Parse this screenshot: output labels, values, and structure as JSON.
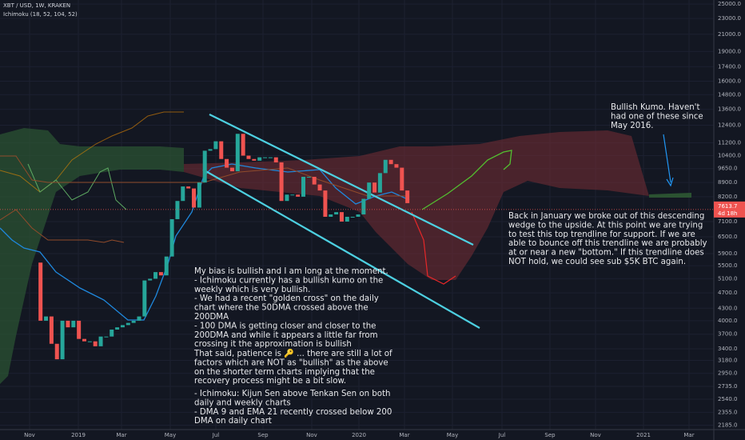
{
  "chart_data": {
    "type": "candlestick",
    "header": "XBT / USD, 1W, KRAKEN",
    "indicator": "Ichimoku (18, 52, 104, 52)",
    "log_scale": true,
    "up_color": "#26a69a",
    "down_color": "#ef5350",
    "open": 5600,
    "close": [
      4000,
      4100,
      3500,
      3200,
      4000,
      3850,
      4000,
      3600,
      3550,
      3550,
      3450,
      3650,
      3650,
      3800,
      3850,
      3900,
      3950,
      4000,
      4100,
      5050,
      5100,
      5300,
      5200,
      5800,
      7200,
      8000,
      8700,
      8600,
      7700,
      8900,
      10700,
      10800,
      11300,
      10200,
      9700,
      9500,
      11800,
      10400,
      10200,
      10100,
      10300,
      10300,
      10300,
      10000,
      8000,
      8300,
      8300,
      8200,
      9200,
      9200,
      8800,
      8500,
      7300,
      7400,
      7500,
      7100,
      7300,
      7300,
      7400,
      8100,
      8900,
      8400,
      9400,
      10150,
      9900,
      9700,
      8500,
      7900
    ],
    "ylim": [
      2130,
      25600
    ],
    "yticks": [
      {
        "value": 25000,
        "label": "25000.0"
      },
      {
        "value": 23000,
        "label": "23000.0"
      },
      {
        "value": 21000,
        "label": "21000.0"
      },
      {
        "value": 19000,
        "label": "19000.0"
      },
      {
        "value": 17400,
        "label": "17400.0"
      },
      {
        "value": 16000,
        "label": "16000.0"
      },
      {
        "value": 14800,
        "label": "14800.0"
      },
      {
        "value": 13600,
        "label": "13600.0"
      },
      {
        "value": 12400,
        "label": "12400.0"
      },
      {
        "value": 11200,
        "label": "11200.0"
      },
      {
        "value": 10400,
        "label": "10400.0"
      },
      {
        "value": 9650,
        "label": "9650.0"
      },
      {
        "value": 8900,
        "label": "8900.0"
      },
      {
        "value": 8200,
        "label": "8200.0"
      },
      {
        "value": 7100,
        "label": "7100.0"
      },
      {
        "value": 6500,
        "label": "6500.0"
      },
      {
        "value": 5900,
        "label": "5900.0"
      },
      {
        "value": 5500,
        "label": "5500.0"
      },
      {
        "value": 5100,
        "label": "5100.0"
      },
      {
        "value": 4700,
        "label": "4700.0"
      },
      {
        "value": 4300,
        "label": "4300.0"
      },
      {
        "value": 4000,
        "label": "4000.0"
      },
      {
        "value": 3700,
        "label": "3700.0"
      },
      {
        "value": 3400,
        "label": "3400.0"
      },
      {
        "value": 3180,
        "label": "3180.0"
      },
      {
        "value": 2950,
        "label": "2950.0"
      },
      {
        "value": 2735,
        "label": "2735.0"
      },
      {
        "value": 2540,
        "label": "2540.0"
      },
      {
        "value": 2355,
        "label": "2355.0"
      },
      {
        "value": 2185,
        "label": "2185.0"
      }
    ],
    "price_label": {
      "value": 7613.7,
      "label": "7613.7"
    },
    "countdown": "4d 18h",
    "x_labels": [
      "Nov",
      "2019",
      "Mar",
      "May",
      "Jul",
      "Sep",
      "Nov",
      "2020",
      "Mar",
      "May",
      "Jul",
      "Sep",
      "Nov",
      "2021",
      "Mar"
    ],
    "notes": {
      "left": [
        "My bias is bullish and I am long at the moment.",
        "- Ichimoku currently has a bullish kumo on the",
        "weekly which is very bullish.",
        "- We had a recent \"golden cross\" on the daily",
        "chart where the 50DMA crossed above the",
        "200DMA",
        "- 100 DMA is getting closer and closer to the",
        "200DMA and while it appears a little far from",
        "crossing it the approximation is bullish"
      ],
      "left2": [
        "That said, patience is 🔑 ... there are still a lot of",
        "factors which are NOT as \"bullish\" as the above",
        "on the shorter term charts implying that the",
        "recovery process might be a bit slow."
      ],
      "left3": [
        "- Ichimoku: Kijun Sen above Tenkan Sen on both",
        "daily and weekly charts",
        "- DMA 9 and EMA 21 recently crossed below 200",
        "DMA on daily chart"
      ],
      "right": [
        "Back in January we broke out of this descending",
        "wedge to the upside. At this point we are trying",
        "to test this top trendline for support. If we are",
        "able to bounce off this trendline we are probably",
        "at or near a new \"bottom.\" If this trendline does",
        "NOT hold, we could see sub $5K BTC again."
      ],
      "top": [
        "Bullish Kumo. Haven't",
        "had one of these since",
        "May 2016."
      ]
    }
  }
}
